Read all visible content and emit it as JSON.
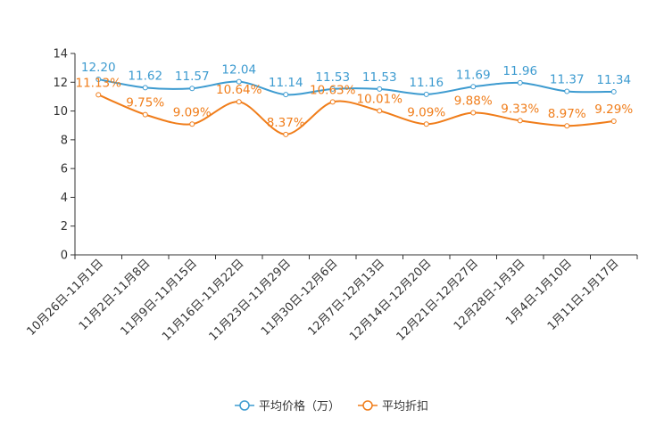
{
  "chart_data": {
    "type": "line",
    "categories": [
      "10月26日-11月1日",
      "11月2日-11月8日",
      "11月9日-11月15日",
      "11月16日-11月22日",
      "11月23日-11月29日",
      "11月30日-12月6日",
      "12月7日-12月13日",
      "12月14日-12月20日",
      "12月21日-12月27日",
      "12月28日-1月3日",
      "1月4日-1月10日",
      "1月11日-1月17日"
    ],
    "series": [
      {
        "name": "平均价格（万）",
        "color": "#3d9bd0",
        "values": [
          12.2,
          11.62,
          11.57,
          12.04,
          11.14,
          11.53,
          11.53,
          11.16,
          11.69,
          11.96,
          11.37,
          11.34
        ],
        "labels": [
          "12.20",
          "11.62",
          "11.57",
          "12.04",
          "11.14",
          "11.53",
          "11.53",
          "11.16",
          "11.69",
          "11.96",
          "11.37",
          "11.34"
        ]
      },
      {
        "name": "平均折扣",
        "color": "#f07d1a",
        "values": [
          11.13,
          9.75,
          9.09,
          10.64,
          8.37,
          10.63,
          10.01,
          9.09,
          9.88,
          9.33,
          8.97,
          9.29
        ],
        "labels": [
          "11.13%",
          "9.75%",
          "9.09%",
          "10.64%",
          "8.37%",
          "10.63%",
          "10.01%",
          "9.09%",
          "9.88%",
          "9.33%",
          "8.97%",
          "9.29%"
        ]
      }
    ],
    "yticks": [
      "0",
      "2",
      "4",
      "6",
      "8",
      "10",
      "12",
      "14"
    ],
    "ylim": [
      0,
      14
    ],
    "xlabel": "",
    "ylabel": "",
    "title": "",
    "legend_position": "bottom-center"
  }
}
